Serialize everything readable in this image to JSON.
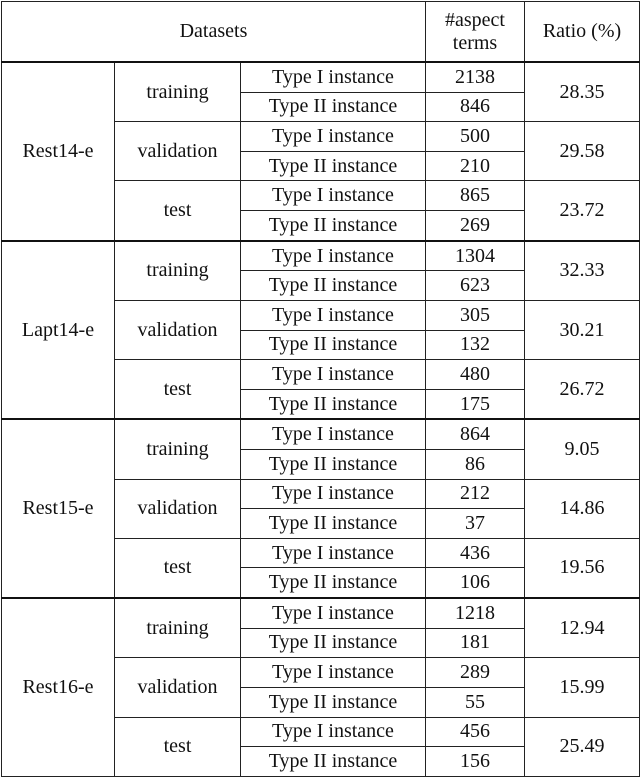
{
  "header": {
    "datasets": "Datasets",
    "aspect_terms": "#aspect terms",
    "ratio": "Ratio (%)"
  },
  "groups": [
    {
      "name": "Rest14-e",
      "splits": [
        {
          "split": "training",
          "type1": "Type I instance",
          "type1_count": "2138",
          "type2": "Type II instance",
          "type2_count": "846",
          "ratio": "28.35"
        },
        {
          "split": "validation",
          "type1": "Type I instance",
          "type1_count": "500",
          "type2": "Type II instance",
          "type2_count": "210",
          "ratio": "29.58"
        },
        {
          "split": "test",
          "type1": "Type I instance",
          "type1_count": "865",
          "type2": "Type II instance",
          "type2_count": "269",
          "ratio": "23.72"
        }
      ]
    },
    {
      "name": "Lapt14-e",
      "splits": [
        {
          "split": "training",
          "type1": "Type I instance",
          "type1_count": "1304",
          "type2": "Type II instance",
          "type2_count": "623",
          "ratio": "32.33"
        },
        {
          "split": "validation",
          "type1": "Type I instance",
          "type1_count": "305",
          "type2": "Type II instance",
          "type2_count": "132",
          "ratio": "30.21"
        },
        {
          "split": "test",
          "type1": "Type I instance",
          "type1_count": "480",
          "type2": "Type II instance",
          "type2_count": "175",
          "ratio": "26.72"
        }
      ]
    },
    {
      "name": "Rest15-e",
      "splits": [
        {
          "split": "training",
          "type1": "Type I instance",
          "type1_count": "864",
          "type2": "Type II instance",
          "type2_count": "86",
          "ratio": "9.05"
        },
        {
          "split": "validation",
          "type1": "Type I instance",
          "type1_count": "212",
          "type2": "Type II instance",
          "type2_count": "37",
          "ratio": "14.86"
        },
        {
          "split": "test",
          "type1": "Type I instance",
          "type1_count": "436",
          "type2": "Type II instance",
          "type2_count": "106",
          "ratio": "19.56"
        }
      ]
    },
    {
      "name": "Rest16-e",
      "splits": [
        {
          "split": "training",
          "type1": "Type I instance",
          "type1_count": "1218",
          "type2": "Type II instance",
          "type2_count": "181",
          "ratio": "12.94"
        },
        {
          "split": "validation",
          "type1": "Type I instance",
          "type1_count": "289",
          "type2": "Type II instance",
          "type2_count": "55",
          "ratio": "15.99"
        },
        {
          "split": "test",
          "type1": "Type I instance",
          "type1_count": "456",
          "type2": "Type II instance",
          "type2_count": "156",
          "ratio": "25.49"
        }
      ]
    }
  ]
}
